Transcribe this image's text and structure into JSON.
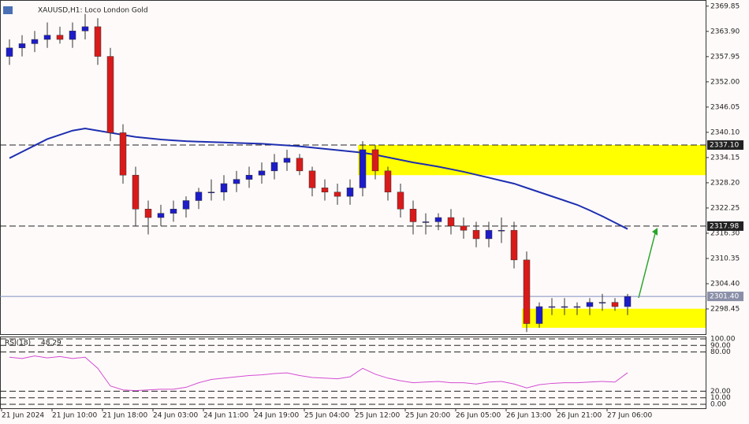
{
  "chart_data": {
    "type": "candlestick",
    "title": "XAUUSD,H1: Loco London Gold",
    "categories": [
      "21 Jun 2024",
      null,
      null,
      null,
      "21 Jun 10:00",
      null,
      null,
      null,
      "21 Jun 18:00",
      null,
      null,
      null,
      "24 Jun 03:00",
      null,
      null,
      null,
      "24 Jun 11:00",
      null,
      null,
      null,
      "24 Jun 19:00",
      null,
      null,
      null,
      "25 Jun 04:00",
      null,
      null,
      null,
      "25 Jun 12:00",
      null,
      null,
      null,
      "25 Jun 20:00",
      null,
      null,
      null,
      "26 Jun 05:00",
      null,
      null,
      null,
      "26 Jun 13:00",
      null,
      null,
      null,
      "26 Jun 21:00",
      null,
      null,
      null,
      "27 Jun 06:00",
      null
    ],
    "open": [
      2358,
      2360,
      2361,
      2362,
      2363,
      2362,
      2364,
      2365,
      2358,
      2340,
      2330,
      2322,
      2320,
      2321,
      2322,
      2324,
      2326,
      2326,
      2328,
      2329,
      2330,
      2331,
      2333,
      2334,
      2331,
      2327,
      2326,
      2325,
      2327,
      2336,
      2331,
      2326,
      2322,
      2319,
      2319,
      2320,
      2318,
      2317,
      2315,
      2317,
      2317,
      2310,
      2295,
      2299,
      2299,
      2299,
      2299,
      2300,
      2300,
      2299
    ],
    "high": [
      2362,
      2363,
      2364,
      2366,
      2365,
      2366,
      2368,
      2367,
      2360,
      2342,
      2332,
      2324,
      2323,
      2324,
      2325,
      2327,
      2329,
      2330,
      2331,
      2332,
      2333,
      2335,
      2336,
      2335,
      2332,
      2329,
      2328,
      2329,
      2338,
      2337,
      2332,
      2328,
      2324,
      2321,
      2321,
      2322,
      2320,
      2319,
      2319,
      2320,
      2319,
      2312,
      2300,
      2301,
      2301,
      2300,
      2301,
      2302,
      2301,
      2302
    ],
    "low": [
      2356,
      2358,
      2359,
      2360,
      2361,
      2360,
      2362,
      2356,
      2338,
      2328,
      2318,
      2316,
      2318,
      2319,
      2320,
      2322,
      2324,
      2324,
      2326,
      2327,
      2328,
      2329,
      2331,
      2330,
      2325,
      2324,
      2323,
      2323,
      2325,
      2329,
      2324,
      2320,
      2316,
      2316,
      2317,
      2316,
      2315,
      2313,
      2313,
      2314,
      2308,
      2293,
      2294,
      2297,
      2297,
      2297,
      2297,
      2298,
      2298,
      2297
    ],
    "close": [
      2360,
      2361,
      2362,
      2363,
      2362,
      2364,
      2365,
      2358,
      2340,
      2330,
      2322,
      2320,
      2321,
      2322,
      2324,
      2326,
      2326,
      2328,
      2329,
      2330,
      2331,
      2333,
      2334,
      2331,
      2327,
      2326,
      2325,
      2327,
      2336,
      2331,
      2326,
      2322,
      2319,
      2319,
      2320,
      2318,
      2317,
      2315,
      2317,
      2317,
      2310,
      2295,
      2299,
      2299,
      2299,
      2299,
      2300,
      2300,
      2299,
      2301.4
    ],
    "up_color": "#1c1cc8",
    "down_color": "#d91a1a",
    "ma": {
      "color": "#1e2fb0",
      "values": [
        2334,
        2335.5,
        2337,
        2338.5,
        2339.5,
        2340.5,
        2341,
        2340.5,
        2340,
        2339.5,
        2339,
        2338.7,
        2338.4,
        2338.2,
        2338,
        2337.9,
        2337.8,
        2337.7,
        2337.6,
        2337.5,
        2337.4,
        2337.2,
        2337,
        2336.8,
        2336.5,
        2336.2,
        2335.9,
        2335.6,
        2335.3,
        2334.8,
        2334.2,
        2333.6,
        2333,
        2332.5,
        2332,
        2331.4,
        2330.8,
        2330.1,
        2329.4,
        2328.7,
        2328,
        2327,
        2326,
        2325,
        2324,
        2323,
        2321.7,
        2320.3,
        2318.8,
        2317.3
      ]
    },
    "ylim": [
      2292.5,
      2371.3
    ],
    "yticks": [
      2369.85,
      {
        "value": 2363.9,
        "label": "2363.90"
      },
      2357.95,
      {
        "value": 2352,
        "label": "2352.00"
      },
      2346.05,
      {
        "value": 2340.1,
        "label": "2340.10"
      },
      2334.15,
      {
        "value": 2328.2,
        "label": "2328.20"
      },
      2322.25,
      {
        "value": 2316.3,
        "label": "2316.30"
      },
      2310.35,
      {
        "value": 2304.4,
        "label": "2304.40"
      },
      2298.45
    ],
    "levels": [
      {
        "value": 2337.1,
        "label": "2337.10",
        "style": "dashed"
      },
      {
        "value": 2317.98,
        "label": "2317.98",
        "style": "dashed"
      },
      {
        "value": 2301.4,
        "label": "2301.40",
        "style": "solid"
      }
    ],
    "zones": [
      {
        "from": 2330,
        "to": 2337.1,
        "start": 28
      },
      {
        "from": 2294,
        "to": 2298.5,
        "start": 41
      }
    ],
    "rsi": {
      "name": "RSI(18)",
      "color": "#d24dd2",
      "values": [
        72,
        70,
        74,
        71,
        73,
        70,
        72,
        55,
        28,
        22,
        21,
        22,
        23,
        23,
        26,
        33,
        38,
        40,
        42,
        44,
        45,
        47,
        48,
        44,
        41,
        40,
        39,
        42,
        55,
        46,
        40,
        36,
        33,
        34,
        35,
        33,
        33,
        31,
        34,
        35,
        31,
        25,
        30,
        32,
        33,
        33,
        34,
        35,
        34,
        48.29
      ],
      "ylim": [
        0,
        100
      ],
      "yticks": [
        {
          "value": 100,
          "label": "100.00"
        },
        {
          "value": 90,
          "label": "90.00"
        },
        {
          "value": 80,
          "label": "80.00"
        },
        {
          "value": 20,
          "label": "20.00"
        },
        {
          "value": 10,
          "label": "10.00"
        },
        {
          "value": 0,
          "label": "0.00"
        }
      ]
    }
  }
}
